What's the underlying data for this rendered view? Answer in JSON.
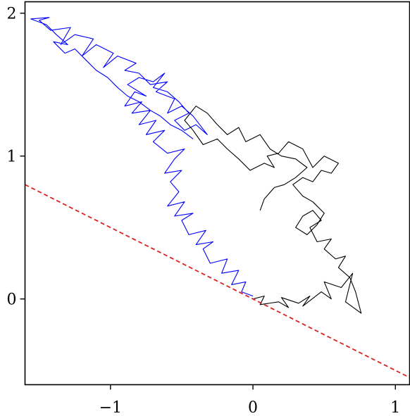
{
  "chart_data": {
    "type": "line",
    "title": "",
    "xlabel": "",
    "ylabel": "",
    "xlim": [
      -1.6,
      1.1
    ],
    "ylim": [
      -0.6,
      2.08
    ],
    "grid": false,
    "legend": "none",
    "xticks": [
      {
        "value": -1,
        "label": "−1"
      },
      {
        "value": 0,
        "label": "0"
      },
      {
        "value": 1,
        "label": "1"
      }
    ],
    "yticks": [
      {
        "value": 0,
        "label": "0"
      },
      {
        "value": 1,
        "label": "1"
      },
      {
        "value": 2,
        "label": "2"
      }
    ],
    "series": [
      {
        "color": "#0000ff",
        "style": "solid",
        "x": [
          0.0,
          -0.08,
          -0.05,
          -0.15,
          -0.1,
          -0.22,
          -0.18,
          -0.3,
          -0.35,
          -0.28,
          -0.4,
          -0.33,
          -0.45,
          -0.5,
          -0.42,
          -0.55,
          -0.48,
          -0.6,
          -0.52,
          -0.58,
          -0.5,
          -0.62,
          -0.55,
          -0.48,
          -0.6,
          -0.7,
          -0.62,
          -0.75,
          -0.68,
          -0.8,
          -0.72,
          -0.85,
          -0.78,
          -0.9,
          -0.83,
          -0.75,
          -0.88,
          -0.8,
          -0.7,
          -0.62,
          -0.7,
          -0.6,
          -0.52,
          -0.45,
          -0.55,
          -0.48,
          -0.4,
          -0.32,
          -0.42,
          -0.5,
          -0.6,
          -0.55,
          -0.68,
          -0.6,
          -0.72,
          -0.8,
          -0.9,
          -0.82,
          -0.95,
          -1.05,
          -0.98,
          -1.1,
          -1.2,
          -1.12,
          -1.25,
          -1.35,
          -1.28,
          -1.42,
          -1.5,
          -1.43,
          -1.56,
          -1.45,
          -1.38,
          -1.3,
          -1.4,
          -1.32,
          -1.25,
          -1.18,
          -1.1,
          -1.02,
          -0.95,
          -0.88,
          -0.8,
          -0.72,
          -0.65,
          -0.58,
          -0.5,
          -0.42
        ],
        "y": [
          0.02,
          0.05,
          0.12,
          0.1,
          0.2,
          0.18,
          0.28,
          0.25,
          0.35,
          0.4,
          0.38,
          0.48,
          0.45,
          0.55,
          0.6,
          0.58,
          0.68,
          0.65,
          0.75,
          0.82,
          0.9,
          0.88,
          0.98,
          1.05,
          1.02,
          1.1,
          1.18,
          1.15,
          1.25,
          1.22,
          1.32,
          1.3,
          1.38,
          1.35,
          1.45,
          1.42,
          1.5,
          1.55,
          1.52,
          1.58,
          1.48,
          1.45,
          1.38,
          1.3,
          1.25,
          1.18,
          1.22,
          1.15,
          1.28,
          1.35,
          1.3,
          1.4,
          1.45,
          1.52,
          1.5,
          1.58,
          1.6,
          1.65,
          1.7,
          1.62,
          1.72,
          1.78,
          1.7,
          1.82,
          1.85,
          1.78,
          1.9,
          1.88,
          1.95,
          1.97,
          1.96,
          1.92,
          1.85,
          1.78,
          1.8,
          1.72,
          1.75,
          1.68,
          1.6,
          1.55,
          1.48,
          1.42,
          1.38,
          1.32,
          1.28,
          1.22,
          1.18,
          1.12
        ]
      },
      {
        "color": "#000000",
        "style": "solid",
        "x": [
          0.0,
          0.08,
          0.05,
          0.18,
          0.25,
          0.2,
          0.32,
          0.4,
          0.35,
          0.48,
          0.55,
          0.5,
          0.62,
          0.7,
          0.65,
          0.76,
          0.72,
          0.68,
          0.6,
          0.65,
          0.58,
          0.5,
          0.55,
          0.45,
          0.4,
          0.48,
          0.42,
          0.35,
          0.3,
          0.38,
          0.45,
          0.5,
          0.42,
          0.35,
          0.28,
          0.35,
          0.42,
          0.48,
          0.55,
          0.6,
          0.5,
          0.42,
          0.35,
          0.25,
          0.18,
          0.1,
          0.15,
          0.08,
          -0.02,
          -0.1,
          -0.18,
          -0.25,
          -0.35,
          -0.42,
          -0.48,
          -0.4,
          -0.32,
          -0.25,
          -0.18,
          -0.1,
          -0.05,
          0.05,
          0.12,
          0.2,
          0.3,
          0.38,
          0.3,
          0.22,
          0.15,
          0.08,
          0.05
        ],
        "y": [
          0.0,
          0.02,
          -0.04,
          -0.02,
          -0.06,
          0.01,
          -0.03,
          0.02,
          -0.05,
          0.05,
          0.0,
          0.12,
          0.08,
          0.18,
          -0.02,
          -0.1,
          0.05,
          0.15,
          0.22,
          0.3,
          0.28,
          0.35,
          0.42,
          0.4,
          0.5,
          0.55,
          0.62,
          0.58,
          0.5,
          0.45,
          0.52,
          0.6,
          0.68,
          0.72,
          0.8,
          0.85,
          0.82,
          0.9,
          0.88,
          0.95,
          1.0,
          0.92,
          1.05,
          1.1,
          1.02,
          1.0,
          0.92,
          0.95,
          0.9,
          0.98,
          1.05,
          1.12,
          1.08,
          1.18,
          1.25,
          1.35,
          1.3,
          1.22,
          1.15,
          1.2,
          1.1,
          1.15,
          1.05,
          1.0,
          0.98,
          0.92,
          0.85,
          0.8,
          0.78,
          0.7,
          0.62
        ]
      },
      {
        "color": "#dd2222",
        "style": "dashed",
        "x": [
          -1.6,
          1.1
        ],
        "y": [
          0.8,
          -0.55
        ]
      }
    ]
  }
}
